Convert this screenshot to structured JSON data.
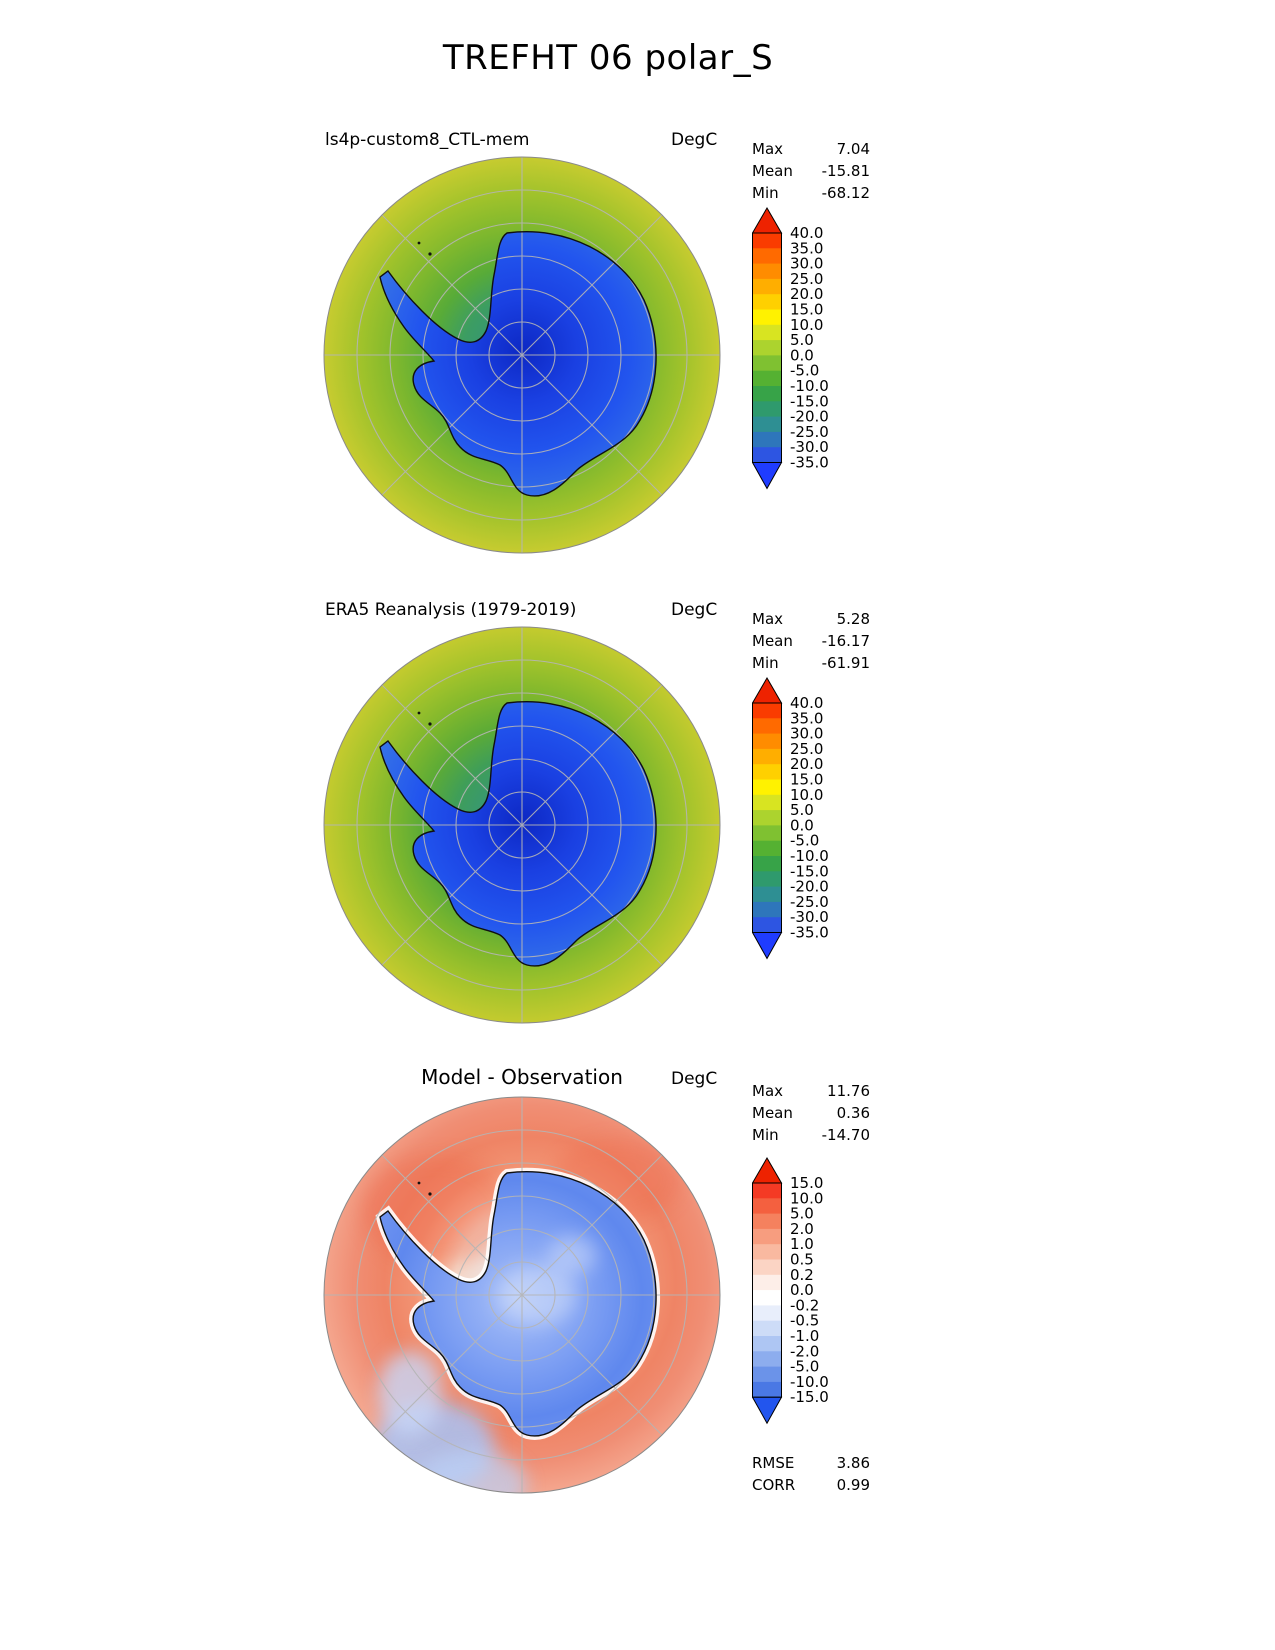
{
  "page_title": "TREFHT 06 polar_S",
  "panels": [
    {
      "title": "ls4p-custom8_CTL-mem",
      "units": "DegC",
      "stats": [
        {
          "label": "Max",
          "value": "7.04"
        },
        {
          "label": "Mean",
          "value": "-15.81"
        },
        {
          "label": "Min",
          "value": "-68.12"
        }
      ],
      "colorbar": {
        "tick_labels": [
          "40.0",
          "35.0",
          "30.0",
          "25.0",
          "20.0",
          "15.0",
          "10.0",
          "5.0",
          "0.0",
          "-5.0",
          "-10.0",
          "-15.0",
          "-20.0",
          "-25.0",
          "-30.0",
          "-35.0"
        ],
        "arrow_top_color": "#ee2200",
        "arrow_bottom_color": "#1f3cff",
        "segment_colors": [
          "#fa3c00",
          "#ff6a00",
          "#ff8c00",
          "#ffae00",
          "#ffd000",
          "#fff200",
          "#d8e421",
          "#acd32e",
          "#7fc131",
          "#55b132",
          "#37a348",
          "#2f9a6d",
          "#2e8f93",
          "#2e76bb",
          "#2d55e2"
        ]
      }
    },
    {
      "title": "ERA5 Reanalysis (1979-2019)",
      "units": "DegC",
      "stats": [
        {
          "label": "Max",
          "value": "5.28"
        },
        {
          "label": "Mean",
          "value": "-16.17"
        },
        {
          "label": "Min",
          "value": "-61.91"
        }
      ],
      "colorbar": {
        "tick_labels": [
          "40.0",
          "35.0",
          "30.0",
          "25.0",
          "20.0",
          "15.0",
          "10.0",
          "5.0",
          "0.0",
          "-5.0",
          "-10.0",
          "-15.0",
          "-20.0",
          "-25.0",
          "-30.0",
          "-35.0"
        ],
        "arrow_top_color": "#ee2200",
        "arrow_bottom_color": "#1f3cff",
        "segment_colors": [
          "#fa3c00",
          "#ff6a00",
          "#ff8c00",
          "#ffae00",
          "#ffd000",
          "#fff200",
          "#d8e421",
          "#acd32e",
          "#7fc131",
          "#55b132",
          "#37a348",
          "#2f9a6d",
          "#2e8f93",
          "#2e76bb",
          "#2d55e2"
        ]
      }
    },
    {
      "title": "Model - Observation",
      "units": "DegC",
      "stats": [
        {
          "label": "Max",
          "value": "11.76"
        },
        {
          "label": "Mean",
          "value": "0.36"
        },
        {
          "label": "Min",
          "value": "-14.70"
        }
      ],
      "extra_stats": [
        {
          "label": "RMSE",
          "value": "3.86"
        },
        {
          "label": "CORR",
          "value": "0.99"
        }
      ],
      "colorbar": {
        "tick_labels": [
          "15.0",
          "10.0",
          "5.0",
          "2.0",
          "1.0",
          "0.5",
          "0.2",
          "0.0",
          "-0.2",
          "-0.5",
          "-1.0",
          "-2.0",
          "-5.0",
          "-10.0",
          "-15.0"
        ],
        "arrow_top_color": "#ee2200",
        "arrow_bottom_color": "#2255ee",
        "segment_colors": [
          "#f43a24",
          "#f4603f",
          "#f5815e",
          "#f79d7f",
          "#f9b9a0",
          "#fbd4c4",
          "#fdeee8",
          "#ffffff",
          "#e8eefb",
          "#cddcf7",
          "#aec6f3",
          "#8dadee",
          "#6b93e9",
          "#4a78e4"
        ]
      }
    }
  ],
  "chart_data": [
    {
      "type": "heatmap",
      "subtype": "south-polar-stereographic-contour-map",
      "title": "ls4p-custom8_CTL-mem",
      "figure_title": "TREFHT 06 polar_S",
      "units": "DegC",
      "region": "polar_S",
      "stats": {
        "max": 7.04,
        "mean": -15.81,
        "min": -68.12
      },
      "contour_levels": [
        -35,
        -30,
        -25,
        -20,
        -15,
        -10,
        -5,
        0,
        5,
        10,
        15,
        20,
        25,
        30,
        35,
        40
      ],
      "legend_position": "right",
      "palette": "blue-green-yellow-red rainbow"
    },
    {
      "type": "heatmap",
      "subtype": "south-polar-stereographic-contour-map",
      "title": "ERA5 Reanalysis (1979-2019)",
      "units": "DegC",
      "region": "polar_S",
      "stats": {
        "max": 5.28,
        "mean": -16.17,
        "min": -61.91
      },
      "contour_levels": [
        -35,
        -30,
        -25,
        -20,
        -15,
        -10,
        -5,
        0,
        5,
        10,
        15,
        20,
        25,
        30,
        35,
        40
      ],
      "legend_position": "right",
      "palette": "blue-green-yellow-red rainbow"
    },
    {
      "type": "heatmap",
      "subtype": "south-polar-stereographic-contour-map",
      "title": "Model - Observation",
      "units": "DegC",
      "region": "polar_S",
      "stats": {
        "max": 11.76,
        "mean": 0.36,
        "min": -14.7,
        "rmse": 3.86,
        "corr": 0.99
      },
      "contour_levels": [
        -15,
        -10,
        -5,
        -2,
        -1,
        -0.5,
        -0.2,
        0,
        0.2,
        0.5,
        1,
        2,
        5,
        10,
        15
      ],
      "legend_position": "right",
      "palette": "blue-white-red diverging"
    }
  ]
}
